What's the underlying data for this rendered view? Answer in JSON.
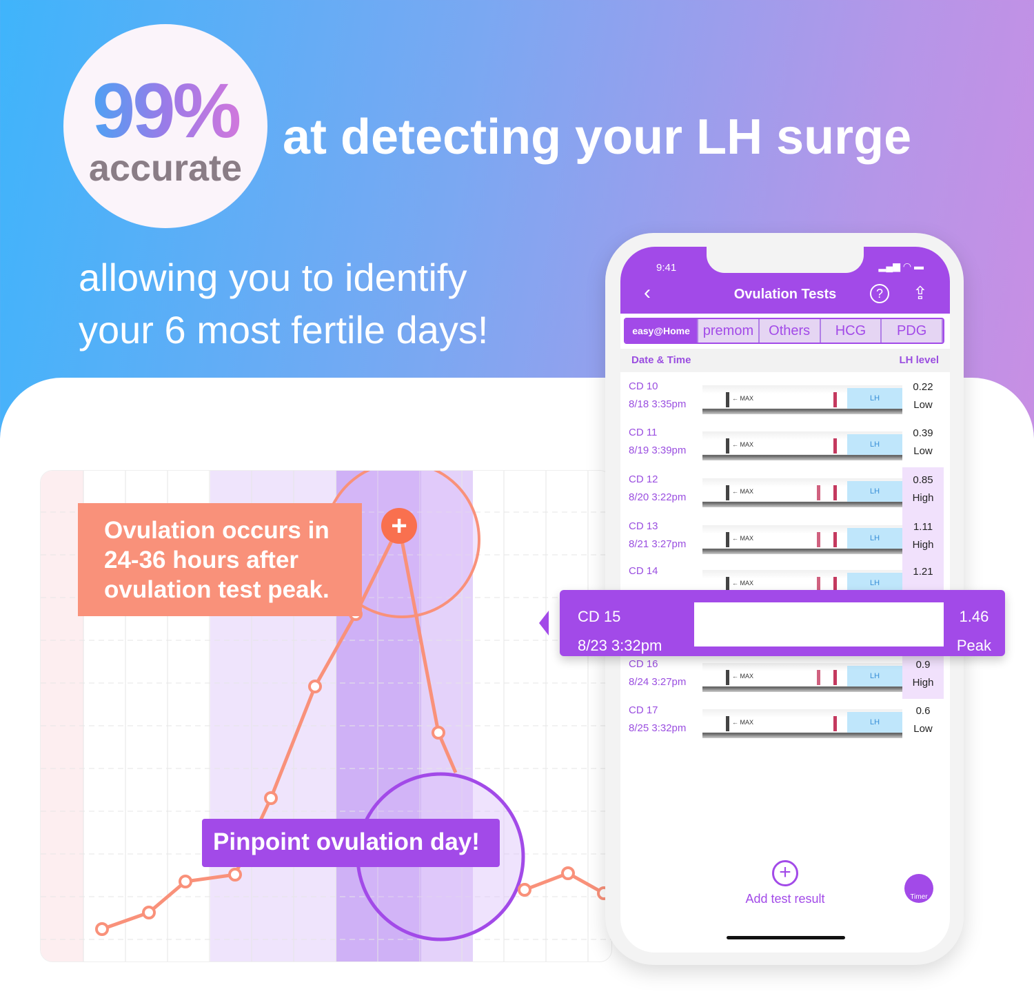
{
  "badge": {
    "percent": "99%",
    "label": "accurate"
  },
  "headline": "at detecting your LH surge",
  "subline": [
    "allowing you to identify",
    "your 6 most fertile days!"
  ],
  "callouts": {
    "ovulation": "Ovulation occurs in 24-36 hours after ovulation test peak.",
    "pinpoint": "Pinpoint ovulation day!"
  },
  "phone": {
    "status_time": "9:41",
    "title": "Ovulation Tests",
    "tabs": [
      "easy@Home",
      "premom",
      "Others",
      "HCG",
      "PDG"
    ],
    "columns": {
      "date": "Date & Time",
      "level": "LH level"
    },
    "strip_labels": {
      "max": "← MAX",
      "brand": "LH"
    },
    "rows": [
      {
        "cd": "CD 10",
        "date": "8/18  3:35pm",
        "value": "0.22",
        "level": "Low",
        "lines": 1
      },
      {
        "cd": "CD 11",
        "date": "8/19  3:39pm",
        "value": "0.39",
        "level": "Low",
        "lines": 1
      },
      {
        "cd": "CD 12",
        "date": "8/20  3:22pm",
        "value": "0.85",
        "level": "High",
        "lines": 2
      },
      {
        "cd": "CD 13",
        "date": "8/21  3:27pm",
        "value": "1.11",
        "level": "High",
        "lines": 2
      },
      {
        "cd": "CD 14",
        "date": "",
        "value": "1.21",
        "level": "",
        "lines": 2
      },
      {
        "cd": "CD 16",
        "date": "8/24  3:27pm",
        "value": "0.9",
        "level": "High",
        "lines": 2
      },
      {
        "cd": "CD 17",
        "date": "8/25  3:32pm",
        "value": "0.6",
        "level": "Low",
        "lines": 1
      }
    ],
    "peak": {
      "cd": "CD 15",
      "date": "8/23   3:32pm",
      "value": "1.46",
      "level": "Peak"
    },
    "add_label": "Add test result",
    "timer_label": "Timer"
  },
  "colors": {
    "accent": "#a24ae8",
    "coral": "#f9917a"
  }
}
